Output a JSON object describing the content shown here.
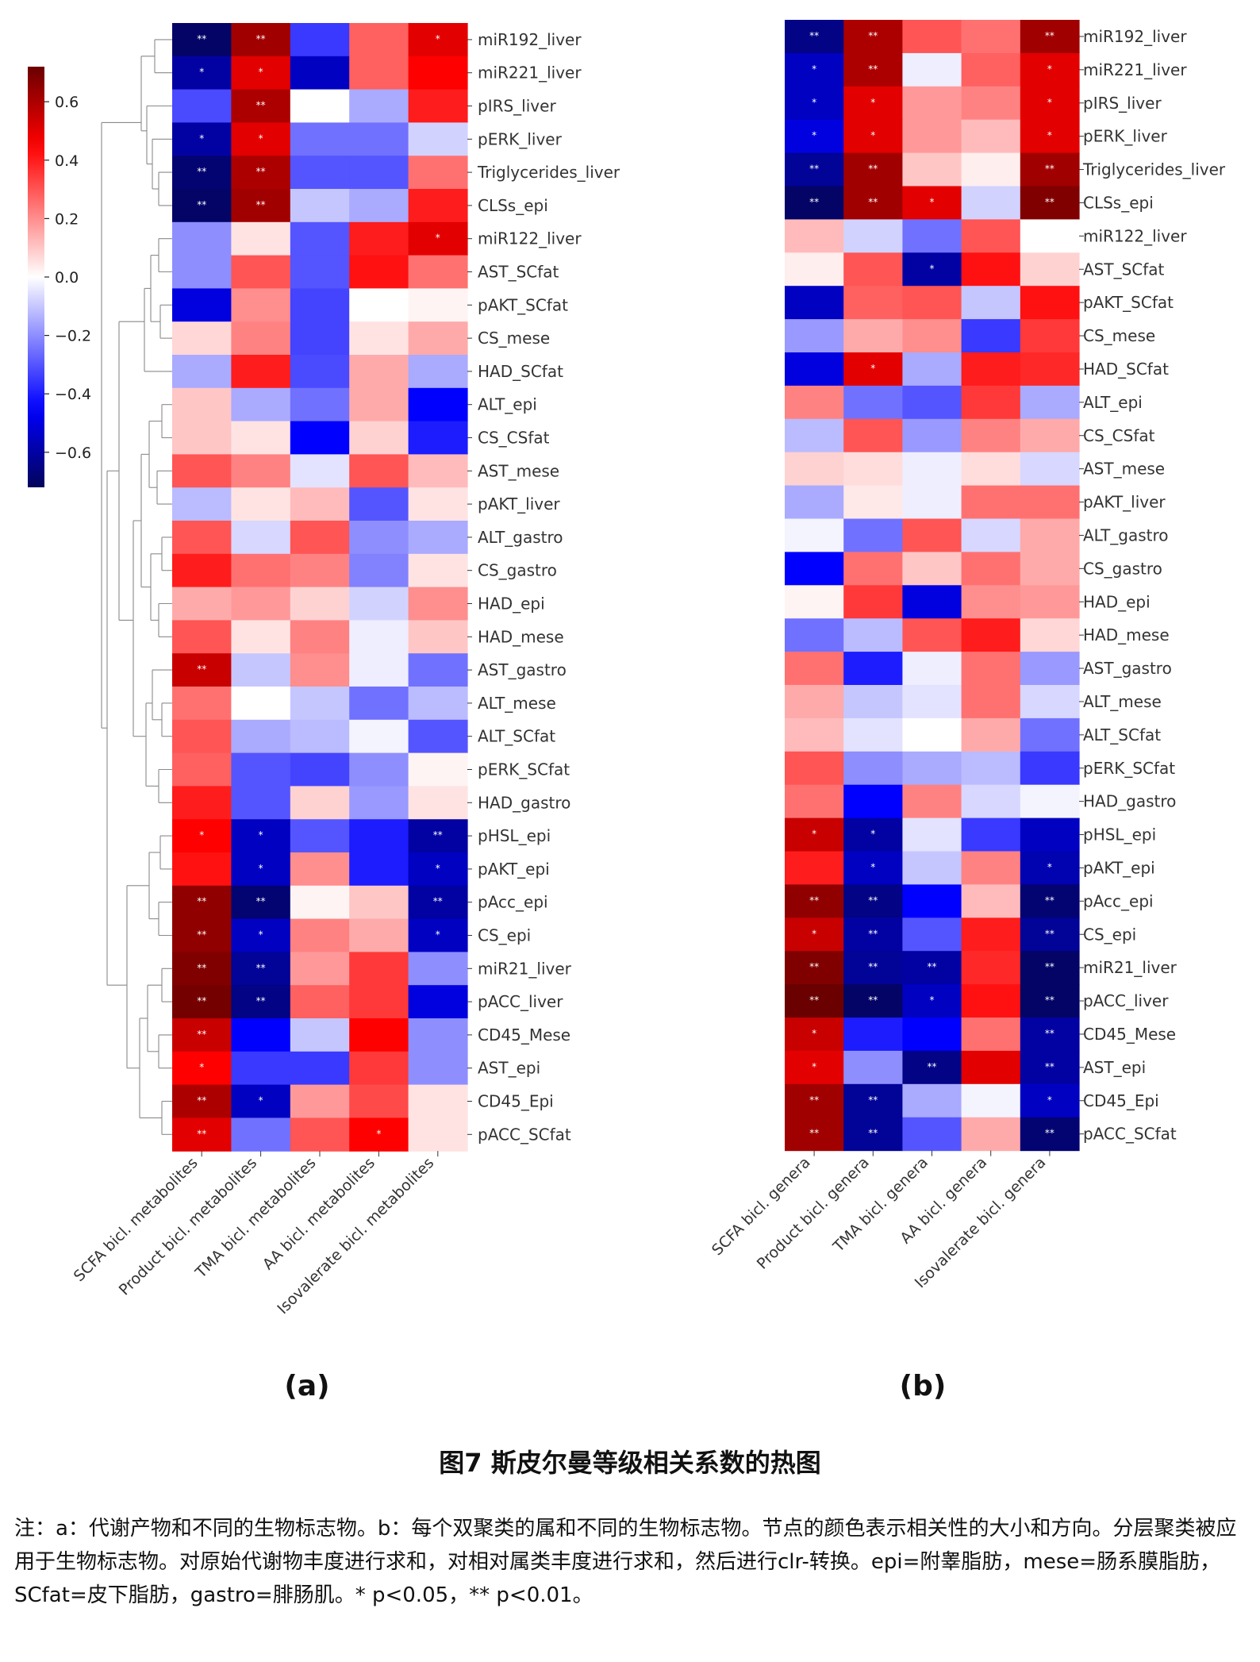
{
  "panels": [
    {
      "id": "a",
      "label": "(a)",
      "columns": [
        "SCFA bicl. metabolites",
        "Product bicl. metabolites",
        "TMA bicl. metabolites",
        "AA bicl. metabolites",
        "Isovalerate bicl. metabolites"
      ],
      "rows": [
        "miR192_liver",
        "miR221_liver",
        "pIRS_liver",
        "pERK_liver",
        "Triglycerides_liver",
        "CLSs_epi",
        "miR122_liver",
        "AST_SCfat",
        "pAKT_SCfat",
        "CS_mese",
        "HAD_SCfat",
        "ALT_epi",
        "CS_CSfat",
        "AST_mese",
        "pAKT_liver",
        "ALT_gastro",
        "CS_gastro",
        "HAD_epi",
        "HAD_mese",
        "AST_gastro",
        "ALT_mese",
        "ALT_SCfat",
        "pERK_SCfat",
        "HAD_gastro",
        "pHSL_epi",
        "pAKT_epi",
        "pAcc_epi",
        "CS_epi",
        "miR21_liver",
        "pACC_liver",
        "CD45_Mese",
        "AST_epi",
        "CD45_Epi",
        "pACC_SCfat"
      ],
      "values": [
        [
          -0.7,
          0.62,
          -0.35,
          0.28,
          0.5
        ],
        [
          -0.6,
          0.5,
          -0.55,
          0.28,
          0.45
        ],
        [
          -0.32,
          0.6,
          0.0,
          -0.15,
          0.4
        ],
        [
          -0.6,
          0.5,
          -0.25,
          -0.25,
          -0.08
        ],
        [
          -0.68,
          0.6,
          -0.3,
          -0.3,
          0.25
        ],
        [
          -0.7,
          0.62,
          -0.1,
          -0.15,
          0.4
        ],
        [
          -0.2,
          0.05,
          -0.3,
          0.4,
          0.5
        ],
        [
          -0.2,
          0.3,
          -0.3,
          0.42,
          0.25
        ],
        [
          -0.5,
          0.2,
          -0.33,
          0.0,
          0.02
        ],
        [
          0.07,
          0.22,
          -0.33,
          0.05,
          0.15
        ],
        [
          -0.15,
          0.4,
          -0.32,
          0.15,
          -0.15
        ],
        [
          0.1,
          -0.15,
          -0.25,
          0.15,
          -0.45
        ],
        [
          0.1,
          0.05,
          -0.45,
          0.08,
          -0.4
        ],
        [
          0.3,
          0.22,
          -0.05,
          0.3,
          0.12
        ],
        [
          -0.12,
          0.05,
          0.12,
          -0.3,
          0.05
        ],
        [
          0.3,
          -0.07,
          0.3,
          -0.2,
          -0.15
        ],
        [
          0.4,
          0.25,
          0.22,
          -0.22,
          0.05
        ],
        [
          0.15,
          0.18,
          0.08,
          -0.08,
          0.2
        ],
        [
          0.3,
          0.05,
          0.22,
          -0.03,
          0.1
        ],
        [
          0.55,
          -0.1,
          0.2,
          -0.03,
          -0.25
        ],
        [
          0.25,
          0.0,
          -0.1,
          -0.25,
          -0.12
        ],
        [
          0.3,
          -0.15,
          -0.12,
          -0.02,
          -0.3
        ],
        [
          0.28,
          -0.3,
          -0.33,
          -0.2,
          0.02
        ],
        [
          0.4,
          -0.3,
          0.08,
          -0.18,
          0.05
        ],
        [
          0.45,
          -0.55,
          -0.3,
          -0.4,
          -0.6
        ],
        [
          0.42,
          -0.55,
          0.2,
          -0.4,
          -0.55
        ],
        [
          0.65,
          -0.68,
          0.02,
          0.1,
          -0.6
        ],
        [
          0.65,
          -0.55,
          0.22,
          0.15,
          -0.55
        ],
        [
          0.68,
          -0.62,
          0.18,
          0.35,
          -0.2
        ],
        [
          0.7,
          -0.65,
          0.28,
          0.35,
          -0.5
        ],
        [
          0.55,
          -0.45,
          -0.1,
          0.45,
          -0.2
        ],
        [
          0.45,
          -0.35,
          -0.35,
          0.35,
          -0.2
        ],
        [
          0.6,
          -0.55,
          0.18,
          0.32,
          0.05
        ],
        [
          0.5,
          -0.25,
          0.3,
          0.45,
          0.05
        ]
      ],
      "stars": [
        [
          "**",
          "**",
          "",
          "",
          "*"
        ],
        [
          "*",
          "*",
          "",
          "",
          ""
        ],
        [
          "",
          "**",
          "",
          "",
          ""
        ],
        [
          "*",
          "*",
          "",
          "",
          ""
        ],
        [
          "**",
          "**",
          "",
          "",
          ""
        ],
        [
          "**",
          "**",
          "",
          "",
          ""
        ],
        [
          "",
          "",
          "",
          "",
          "*"
        ],
        [
          "",
          "",
          "",
          "",
          ""
        ],
        [
          "",
          "",
          "",
          "",
          ""
        ],
        [
          "",
          "",
          "",
          "",
          ""
        ],
        [
          "",
          "",
          "",
          "",
          ""
        ],
        [
          "",
          "",
          "",
          "",
          ""
        ],
        [
          "",
          "",
          "",
          "",
          ""
        ],
        [
          "",
          "",
          "",
          "",
          ""
        ],
        [
          "",
          "",
          "",
          "",
          ""
        ],
        [
          "",
          "",
          "",
          "",
          ""
        ],
        [
          "",
          "",
          "",
          "",
          ""
        ],
        [
          "",
          "",
          "",
          "",
          ""
        ],
        [
          "",
          "",
          "",
          "",
          ""
        ],
        [
          "**",
          "",
          "",
          "",
          ""
        ],
        [
          "",
          "",
          "",
          "",
          ""
        ],
        [
          "",
          "",
          "",
          "",
          ""
        ],
        [
          "",
          "",
          "",
          "",
          ""
        ],
        [
          "",
          "",
          "",
          "",
          ""
        ],
        [
          "*",
          "*",
          "",
          "",
          "**"
        ],
        [
          "",
          "*",
          "",
          "",
          "*"
        ],
        [
          "**",
          "**",
          "",
          "",
          "**"
        ],
        [
          "**",
          "*",
          "",
          "",
          "*"
        ],
        [
          "**",
          "**",
          "",
          "",
          ""
        ],
        [
          "**",
          "**",
          "",
          "",
          ""
        ],
        [
          "**",
          "",
          "",
          "",
          ""
        ],
        [
          "*",
          "",
          "",
          "",
          ""
        ],
        [
          "**",
          "*",
          "",
          "",
          ""
        ],
        [
          "**",
          "",
          "",
          "*",
          ""
        ]
      ]
    },
    {
      "id": "b",
      "label": "(b)",
      "columns": [
        "SCFA bicl. genera",
        "Product bicl. genera",
        "TMA bicl. genera",
        "AA bicl. genera",
        "Isovalerate bicl. genera"
      ],
      "rows": [
        "miR192_liver",
        "miR221_liver",
        "pIRS_liver",
        "pERK_liver",
        "Triglycerides_liver",
        "CLSs_epi",
        "miR122_liver",
        "AST_SCfat",
        "pAKT_SCfat",
        "CS_mese",
        "HAD_SCfat",
        "ALT_epi",
        "CS_CSfat",
        "AST_mese",
        "pAKT_liver",
        "ALT_gastro",
        "CS_gastro",
        "HAD_epi",
        "HAD_mese",
        "AST_gastro",
        "ALT_mese",
        "ALT_SCfat",
        "pERK_SCfat",
        "HAD_gastro",
        "pHSL_epi",
        "pAKT_epi",
        "pAcc_epi",
        "CS_epi",
        "miR21_liver",
        "pACC_liver",
        "CD45_Mese",
        "AST_epi",
        "CD45_Epi",
        "pACC_SCfat"
      ],
      "values": [
        [
          -0.65,
          0.6,
          0.3,
          0.25,
          0.62
        ],
        [
          -0.55,
          0.6,
          -0.03,
          0.28,
          0.5
        ],
        [
          -0.55,
          0.5,
          0.18,
          0.22,
          0.5
        ],
        [
          -0.5,
          0.5,
          0.18,
          0.12,
          0.5
        ],
        [
          -0.62,
          0.62,
          0.1,
          0.03,
          0.62
        ],
        [
          -0.7,
          0.62,
          0.5,
          -0.08,
          0.68
        ],
        [
          0.12,
          -0.08,
          -0.25,
          0.3,
          0.0
        ],
        [
          0.03,
          0.3,
          -0.6,
          0.42,
          0.08
        ],
        [
          -0.55,
          0.28,
          0.3,
          -0.1,
          0.42
        ],
        [
          -0.18,
          0.15,
          0.2,
          -0.35,
          0.35
        ],
        [
          -0.5,
          0.5,
          -0.15,
          0.4,
          0.38
        ],
        [
          0.22,
          -0.25,
          -0.3,
          0.35,
          -0.15
        ],
        [
          -0.12,
          0.3,
          -0.18,
          0.22,
          0.15
        ],
        [
          0.08,
          0.06,
          -0.03,
          0.06,
          -0.07
        ],
        [
          -0.15,
          0.04,
          -0.03,
          0.25,
          0.25
        ],
        [
          -0.02,
          -0.25,
          0.3,
          -0.07,
          0.15
        ],
        [
          -0.45,
          0.25,
          0.1,
          0.25,
          0.15
        ],
        [
          0.02,
          0.35,
          -0.5,
          0.2,
          0.18
        ],
        [
          -0.25,
          -0.12,
          0.3,
          0.4,
          0.07
        ],
        [
          0.25,
          -0.4,
          -0.03,
          0.25,
          -0.18
        ],
        [
          0.15,
          -0.1,
          -0.05,
          0.25,
          -0.07
        ],
        [
          0.12,
          -0.05,
          0.0,
          0.15,
          -0.25
        ],
        [
          0.3,
          -0.2,
          -0.15,
          -0.12,
          -0.35
        ],
        [
          0.25,
          -0.45,
          0.22,
          -0.07,
          -0.02
        ],
        [
          0.55,
          -0.6,
          -0.05,
          -0.35,
          -0.55
        ],
        [
          0.4,
          -0.55,
          -0.1,
          0.22,
          -0.58
        ],
        [
          0.65,
          -0.65,
          -0.45,
          0.12,
          -0.68
        ],
        [
          0.55,
          -0.6,
          -0.3,
          0.4,
          -0.62
        ],
        [
          0.68,
          -0.62,
          -0.6,
          0.38,
          -0.7
        ],
        [
          0.72,
          -0.7,
          -0.55,
          0.42,
          -0.7
        ],
        [
          0.55,
          -0.4,
          -0.45,
          0.25,
          -0.6
        ],
        [
          0.5,
          -0.2,
          -0.65,
          0.5,
          -0.6
        ],
        [
          0.62,
          -0.62,
          -0.15,
          -0.02,
          -0.55
        ],
        [
          0.62,
          -0.62,
          -0.3,
          0.15,
          -0.68
        ]
      ],
      "stars": [
        [
          "**",
          "**",
          "",
          "",
          "**"
        ],
        [
          "*",
          "**",
          "",
          "",
          "*"
        ],
        [
          "*",
          "*",
          "",
          "",
          "*"
        ],
        [
          "*",
          "*",
          "",
          "",
          "*"
        ],
        [
          "**",
          "**",
          "",
          "",
          "**"
        ],
        [
          "**",
          "**",
          "*",
          "",
          "**"
        ],
        [
          "",
          "",
          "",
          "",
          ""
        ],
        [
          "",
          "",
          "*",
          "",
          ""
        ],
        [
          "",
          "",
          "",
          "",
          ""
        ],
        [
          "",
          "",
          "",
          "",
          ""
        ],
        [
          "",
          "*",
          "",
          "",
          ""
        ],
        [
          "",
          "",
          "",
          "",
          ""
        ],
        [
          "",
          "",
          "",
          "",
          ""
        ],
        [
          "",
          "",
          "",
          "",
          ""
        ],
        [
          "",
          "",
          "",
          "",
          ""
        ],
        [
          "",
          "",
          "",
          "",
          ""
        ],
        [
          "",
          "",
          "",
          "",
          ""
        ],
        [
          "",
          "",
          "",
          "",
          ""
        ],
        [
          "",
          "",
          "",
          "",
          ""
        ],
        [
          "",
          "",
          "",
          "",
          ""
        ],
        [
          "",
          "",
          "",
          "",
          ""
        ],
        [
          "",
          "",
          "",
          "",
          ""
        ],
        [
          "",
          "",
          "",
          "",
          ""
        ],
        [
          "",
          "",
          "",
          "",
          ""
        ],
        [
          "*",
          "*",
          "",
          "",
          ""
        ],
        [
          "",
          "*",
          "",
          "",
          "*"
        ],
        [
          "**",
          "**",
          "",
          "",
          "**"
        ],
        [
          "*",
          "**",
          "",
          "",
          "**"
        ],
        [
          "**",
          "**",
          "**",
          "",
          "**"
        ],
        [
          "**",
          "**",
          "*",
          "",
          "**"
        ],
        [
          "*",
          "",
          "",
          "",
          "**"
        ],
        [
          "*",
          "",
          "**",
          "",
          "**"
        ],
        [
          "**",
          "**",
          "",
          "",
          "*"
        ],
        [
          "**",
          "**",
          "",
          "",
          "**"
        ]
      ]
    }
  ],
  "colorbar": {
    "ticks": [
      0.6,
      0.4,
      0.2,
      0.0,
      -0.2,
      -0.4,
      -0.6
    ],
    "tick_labels": [
      "0.6",
      "0.4",
      "0.2",
      "0.0",
      "−0.2",
      "−0.4",
      "−0.6"
    ],
    "min": -0.72,
    "max": 0.72,
    "low_color": "#03045a",
    "mid_color": "#ffffff",
    "high_color": "#6a0000"
  },
  "figure_title": "图7 斯皮尔曼等级相关系数的热图",
  "note": "注：a：代谢产物和不同的生物标志物。b：每个双聚类的属和不同的生物标志物。节点的颜色表示相关性的大小和方向。分层聚类被应用于生物标志物。对原始代谢物丰度进行求和，对相对属类丰度进行求和，然后进行clr-转换。epi=附睾脂肪，mese=肠系膜脂肪，SCfat=皮下脂肪，gastro=腓肠肌。* p<0.05，** p<0.01。"
}
